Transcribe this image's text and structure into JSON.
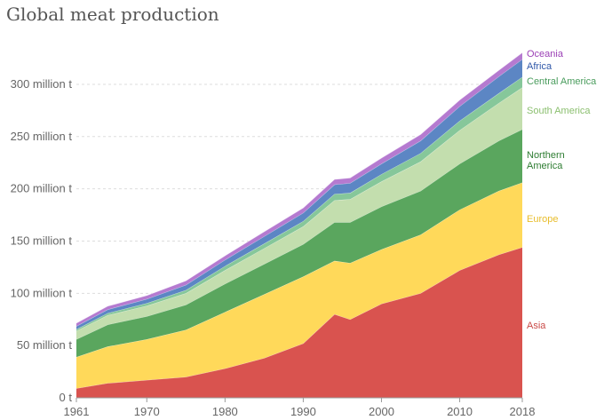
{
  "chart_data": {
    "type": "area",
    "title": "Global meat production",
    "stacked": true,
    "xlim": [
      1961,
      2018
    ],
    "ylim": [
      0,
      345
    ],
    "x_ticks": [
      1961,
      1970,
      1980,
      1990,
      2000,
      2010,
      2018
    ],
    "y_ticks": [
      0,
      50,
      100,
      150,
      200,
      250,
      300
    ],
    "y_tick_labels": [
      "0 t",
      "50 million t",
      "100 million t",
      "150 million t",
      "200 million t",
      "250 million t",
      "300 million t"
    ],
    "grid": "horizontal dashed",
    "legend_placement": "right, inline labels at series ends",
    "x": [
      1961,
      1965,
      1970,
      1975,
      1980,
      1985,
      1990,
      1994,
      1996,
      2000,
      2005,
      2010,
      2015,
      2018
    ],
    "series": [
      {
        "name": "Asia",
        "color": "#d9534f",
        "values": [
          9,
          14,
          17,
          20,
          28,
          38,
          52,
          80,
          75,
          90,
          100,
          122,
          137,
          144
        ]
      },
      {
        "name": "Europe",
        "color": "#ffd95a",
        "values": [
          30,
          35,
          39,
          45,
          54,
          61,
          64,
          51,
          54,
          52,
          56,
          58,
          61,
          62
        ]
      },
      {
        "name": "Northern America",
        "color": "#5aa65e",
        "values": [
          17,
          21,
          22,
          24,
          27,
          29,
          31,
          37,
          39,
          41,
          42,
          44,
          48,
          51
        ]
      },
      {
        "name": "South America",
        "color": "#c3deae",
        "values": [
          8,
          9,
          10,
          11,
          13,
          15,
          17,
          21,
          22,
          24,
          28,
          32,
          36,
          40
        ]
      },
      {
        "name": "Central America",
        "color": "#86c79a",
        "values": [
          1.5,
          2,
          2.5,
          3,
          4,
          4.5,
          5,
          6,
          6,
          7,
          8,
          9,
          9.5,
          10
        ]
      },
      {
        "name": "Africa",
        "color": "#5c86c4",
        "values": [
          3,
          3.5,
          4,
          5,
          6,
          7,
          8,
          9,
          9.5,
          10,
          12,
          14,
          16,
          17
        ]
      },
      {
        "name": "Oceania",
        "color": "#b57ad0",
        "values": [
          3,
          3.2,
          3.5,
          4,
          4,
          4.5,
          4.8,
          5,
          5,
          5.5,
          6,
          6,
          6,
          6.3
        ]
      }
    ],
    "legend_colors": {
      "Asia": "#c94a47",
      "Europe": "#e8bd2c",
      "Northern America": "#2e7d32",
      "South America": "#8bbf6f",
      "Central America": "#4a9c5d",
      "Africa": "#2f57a8",
      "Oceania": "#9b3fb5"
    }
  }
}
